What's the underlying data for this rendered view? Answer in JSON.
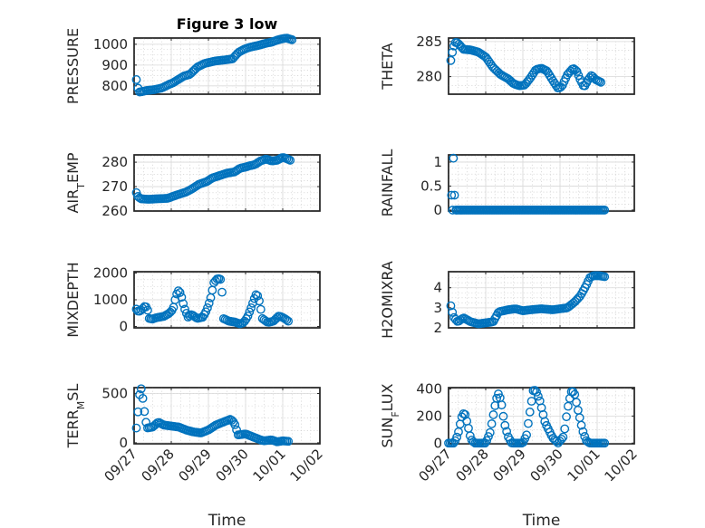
{
  "figure": {
    "title": "Figure 3 low",
    "marker_color": "#0072BD",
    "x_tick_labels": [
      "09/27",
      "09/28",
      "09/29",
      "09/30",
      "10/01",
      "10/02"
    ],
    "xlabel": "Time"
  },
  "chart_data": [
    {
      "type": "scatter",
      "title": "Figure 3 low",
      "ylabel": "PRESSURE",
      "ylabel_parts": [
        {
          "t": "PRESSURE"
        }
      ],
      "xlim": [
        0,
        5
      ],
      "ylim": [
        760,
        1030
      ],
      "yticks": [
        800,
        900,
        1000
      ],
      "anchors": [
        [
          0.06,
          830
        ],
        [
          0.09,
          800
        ],
        [
          0.13,
          770
        ],
        [
          0.2,
          772
        ],
        [
          0.35,
          778
        ],
        [
          0.55,
          782
        ],
        [
          0.75,
          790
        ],
        [
          0.95,
          808
        ],
        [
          1.05,
          815
        ],
        [
          1.2,
          832
        ],
        [
          1.35,
          848
        ],
        [
          1.5,
          855
        ],
        [
          1.7,
          890
        ],
        [
          1.9,
          908
        ],
        [
          2.05,
          914
        ],
        [
          2.2,
          920
        ],
        [
          2.45,
          925
        ],
        [
          2.65,
          930
        ],
        [
          2.8,
          960
        ],
        [
          2.95,
          975
        ],
        [
          3.1,
          985
        ],
        [
          3.35,
          995
        ],
        [
          3.55,
          1005
        ],
        [
          3.7,
          1010
        ],
        [
          3.85,
          1020
        ],
        [
          3.95,
          1025
        ],
        [
          4.1,
          1030
        ],
        [
          4.25,
          1022
        ]
      ],
      "samples": 95
    },
    {
      "type": "scatter",
      "ylabel": "THETA",
      "ylabel_parts": [
        {
          "t": "THETA"
        }
      ],
      "xlim": [
        0,
        5
      ],
      "ylim": [
        277.5,
        285.5
      ],
      "yticks": [
        280,
        285
      ],
      "anchors": [
        [
          0.06,
          282.3
        ],
        [
          0.1,
          283.4
        ],
        [
          0.14,
          284.3
        ],
        [
          0.2,
          285.0
        ],
        [
          0.3,
          284.5
        ],
        [
          0.4,
          283.9
        ],
        [
          0.6,
          283.8
        ],
        [
          0.8,
          283.5
        ],
        [
          1.0,
          282.8
        ],
        [
          1.2,
          281.3
        ],
        [
          1.4,
          280.3
        ],
        [
          1.6,
          279.7
        ],
        [
          1.75,
          279.0
        ],
        [
          1.9,
          278.7
        ],
        [
          2.05,
          278.8
        ],
        [
          2.2,
          279.8
        ],
        [
          2.35,
          281.0
        ],
        [
          2.5,
          281.2
        ],
        [
          2.65,
          280.8
        ],
        [
          2.8,
          279.5
        ],
        [
          2.95,
          278.3
        ],
        [
          3.05,
          278.6
        ],
        [
          3.2,
          280.3
        ],
        [
          3.35,
          281.2
        ],
        [
          3.45,
          280.8
        ],
        [
          3.55,
          279.5
        ],
        [
          3.65,
          278.5
        ],
        [
          3.75,
          279.5
        ],
        [
          3.85,
          280.2
        ],
        [
          3.95,
          279.6
        ],
        [
          4.1,
          279.2
        ]
      ],
      "samples": 95
    },
    {
      "type": "scatter",
      "ylabel": "AIR_TEMP",
      "ylabel_parts": [
        {
          "t": "AIR"
        },
        {
          "t": "T",
          "sub": true
        },
        {
          "t": "EMP"
        }
      ],
      "xlim": [
        0,
        5
      ],
      "ylim": [
        260,
        283
      ],
      "yticks": [
        260,
        270,
        280
      ],
      "anchors": [
        [
          0.06,
          267.5
        ],
        [
          0.1,
          266.0
        ],
        [
          0.18,
          265.0
        ],
        [
          0.4,
          264.8
        ],
        [
          0.6,
          265.0
        ],
        [
          0.9,
          265.2
        ],
        [
          1.1,
          266.3
        ],
        [
          1.4,
          267.8
        ],
        [
          1.55,
          269.0
        ],
        [
          1.75,
          271.0
        ],
        [
          1.95,
          272.0
        ],
        [
          2.1,
          273.5
        ],
        [
          2.3,
          274.5
        ],
        [
          2.5,
          275.5
        ],
        [
          2.7,
          276.0
        ],
        [
          2.85,
          277.5
        ],
        [
          3.0,
          278.0
        ],
        [
          3.1,
          278.5
        ],
        [
          3.25,
          279.0
        ],
        [
          3.4,
          280.5
        ],
        [
          3.55,
          281.3
        ],
        [
          3.7,
          280.5
        ],
        [
          3.85,
          280.8
        ],
        [
          4.0,
          282.0
        ],
        [
          4.1,
          281.5
        ],
        [
          4.2,
          280.8
        ]
      ],
      "samples": 95
    },
    {
      "type": "scatter",
      "ylabel": "RAINFALL",
      "ylabel_parts": [
        {
          "t": "RAINFALL"
        }
      ],
      "xlim": [
        0,
        5
      ],
      "ylim": [
        -0.02,
        1.15
      ],
      "yticks": [
        0,
        0.5,
        1
      ],
      "ytick_labels": [
        "0",
        "0.5",
        "1"
      ],
      "points": [
        [
          0.13,
          1.08
        ],
        [
          0.08,
          0.31
        ],
        [
          0.16,
          0.31
        ],
        [
          0.11,
          0.0
        ],
        [
          0.2,
          0.0
        ]
      ],
      "flat": {
        "x0": 0.22,
        "x1": 4.2,
        "y": 0.0,
        "n": 95
      }
    },
    {
      "type": "scatter",
      "ylabel": "MIXDEPTH",
      "ylabel_parts": [
        {
          "t": "MIXDEPTH"
        }
      ],
      "xlim": [
        0,
        5
      ],
      "ylim": [
        -50,
        2050
      ],
      "yticks": [
        0,
        1000,
        2000
      ],
      "anchors": [
        [
          0.06,
          650
        ],
        [
          0.12,
          550
        ],
        [
          0.2,
          620
        ],
        [
          0.3,
          780
        ],
        [
          0.36,
          650
        ],
        [
          0.4,
          300
        ],
        [
          0.5,
          280
        ],
        [
          0.6,
          330
        ],
        [
          0.8,
          380
        ],
        [
          0.95,
          500
        ],
        [
          1.05,
          650
        ],
        [
          1.12,
          1100
        ],
        [
          1.18,
          1350
        ],
        [
          1.25,
          1250
        ],
        [
          1.35,
          700
        ],
        [
          1.45,
          350
        ],
        [
          1.55,
          450
        ],
        [
          1.7,
          300
        ],
        [
          1.85,
          350
        ],
        [
          1.95,
          600
        ],
        [
          2.05,
          1000
        ],
        [
          2.15,
          1650
        ],
        [
          2.25,
          1800
        ],
        [
          2.35,
          1750
        ],
        [
          2.4,
          300
        ],
        [
          2.55,
          200
        ],
        [
          2.7,
          170
        ],
        [
          2.85,
          100
        ],
        [
          2.95,
          150
        ],
        [
          3.05,
          350
        ],
        [
          3.15,
          700
        ],
        [
          3.25,
          1100
        ],
        [
          3.3,
          1250
        ],
        [
          3.38,
          900
        ],
        [
          3.45,
          300
        ],
        [
          3.6,
          150
        ],
        [
          3.75,
          200
        ],
        [
          3.9,
          400
        ],
        [
          4.05,
          300
        ],
        [
          4.15,
          200
        ]
      ],
      "samples": 95
    },
    {
      "type": "scatter",
      "ylabel": "H2OMIXRA",
      "ylabel_parts": [
        {
          "t": "H2OMIXRA"
        }
      ],
      "xlim": [
        0,
        5
      ],
      "ylim": [
        2,
        4.8
      ],
      "yticks": [
        2,
        3,
        4
      ],
      "anchors": [
        [
          0.06,
          3.1
        ],
        [
          0.1,
          2.8
        ],
        [
          0.15,
          2.5
        ],
        [
          0.25,
          2.3
        ],
        [
          0.4,
          2.5
        ],
        [
          0.6,
          2.3
        ],
        [
          0.8,
          2.2
        ],
        [
          1.0,
          2.25
        ],
        [
          1.2,
          2.3
        ],
        [
          1.35,
          2.8
        ],
        [
          1.6,
          2.9
        ],
        [
          1.8,
          2.95
        ],
        [
          2.0,
          2.85
        ],
        [
          2.2,
          2.9
        ],
        [
          2.5,
          2.95
        ],
        [
          2.8,
          2.9
        ],
        [
          3.0,
          2.95
        ],
        [
          3.2,
          3.0
        ],
        [
          3.4,
          3.3
        ],
        [
          3.55,
          3.6
        ],
        [
          3.7,
          4.1
        ],
        [
          3.8,
          4.5
        ],
        [
          3.9,
          4.6
        ],
        [
          4.05,
          4.6
        ],
        [
          4.2,
          4.55
        ]
      ],
      "samples": 95
    },
    {
      "type": "scatter",
      "ylabel": "TERR_MSL",
      "ylabel_parts": [
        {
          "t": "TERR"
        },
        {
          "t": "M",
          "sub": true
        },
        {
          "t": "SL"
        }
      ],
      "xlim": [
        0,
        5
      ],
      "ylim": [
        -10,
        560
      ],
      "yticks": [
        0,
        500
      ],
      "anchors": [
        [
          0.06,
          150
        ],
        [
          0.1,
          300
        ],
        [
          0.15,
          500
        ],
        [
          0.2,
          560
        ],
        [
          0.25,
          400
        ],
        [
          0.3,
          250
        ],
        [
          0.35,
          150
        ],
        [
          0.5,
          160
        ],
        [
          0.65,
          210
        ],
        [
          0.8,
          180
        ],
        [
          1.0,
          170
        ],
        [
          1.2,
          160
        ],
        [
          1.4,
          130
        ],
        [
          1.6,
          110
        ],
        [
          1.8,
          100
        ],
        [
          2.0,
          130
        ],
        [
          2.2,
          180
        ],
        [
          2.4,
          210
        ],
        [
          2.6,
          240
        ],
        [
          2.7,
          200
        ],
        [
          2.8,
          80
        ],
        [
          3.0,
          90
        ],
        [
          3.2,
          60
        ],
        [
          3.4,
          30
        ],
        [
          3.5,
          20
        ],
        [
          3.7,
          30
        ],
        [
          3.85,
          10
        ],
        [
          4.0,
          20
        ],
        [
          4.15,
          15
        ]
      ],
      "samples": 95
    },
    {
      "type": "scatter",
      "ylabel": "SUN_FLUX",
      "ylabel_parts": [
        {
          "t": "SUN"
        },
        {
          "t": "F",
          "sub": true
        },
        {
          "t": "LUX"
        }
      ],
      "xlim": [
        0,
        5
      ],
      "ylim": [
        -5,
        410
      ],
      "yticks": [
        0,
        200,
        400
      ],
      "anchors": [
        [
          0.0,
          0
        ],
        [
          0.15,
          0
        ],
        [
          0.25,
          60
        ],
        [
          0.32,
          150
        ],
        [
          0.38,
          220
        ],
        [
          0.45,
          210
        ],
        [
          0.52,
          130
        ],
        [
          0.6,
          30
        ],
        [
          0.7,
          0
        ],
        [
          1.0,
          0
        ],
        [
          1.12,
          80
        ],
        [
          1.2,
          200
        ],
        [
          1.28,
          320
        ],
        [
          1.35,
          370
        ],
        [
          1.42,
          300
        ],
        [
          1.5,
          150
        ],
        [
          1.6,
          50
        ],
        [
          1.7,
          0
        ],
        [
          2.0,
          0
        ],
        [
          2.1,
          60
        ],
        [
          2.2,
          250
        ],
        [
          2.28,
          390
        ],
        [
          2.35,
          390
        ],
        [
          2.45,
          320
        ],
        [
          2.6,
          150
        ],
        [
          2.8,
          40
        ],
        [
          2.95,
          0
        ],
        [
          3.1,
          50
        ],
        [
          3.2,
          250
        ],
        [
          3.3,
          380
        ],
        [
          3.38,
          380
        ],
        [
          3.48,
          250
        ],
        [
          3.6,
          100
        ],
        [
          3.7,
          20
        ],
        [
          3.8,
          0
        ],
        [
          4.2,
          0
        ]
      ],
      "samples": 95
    }
  ]
}
